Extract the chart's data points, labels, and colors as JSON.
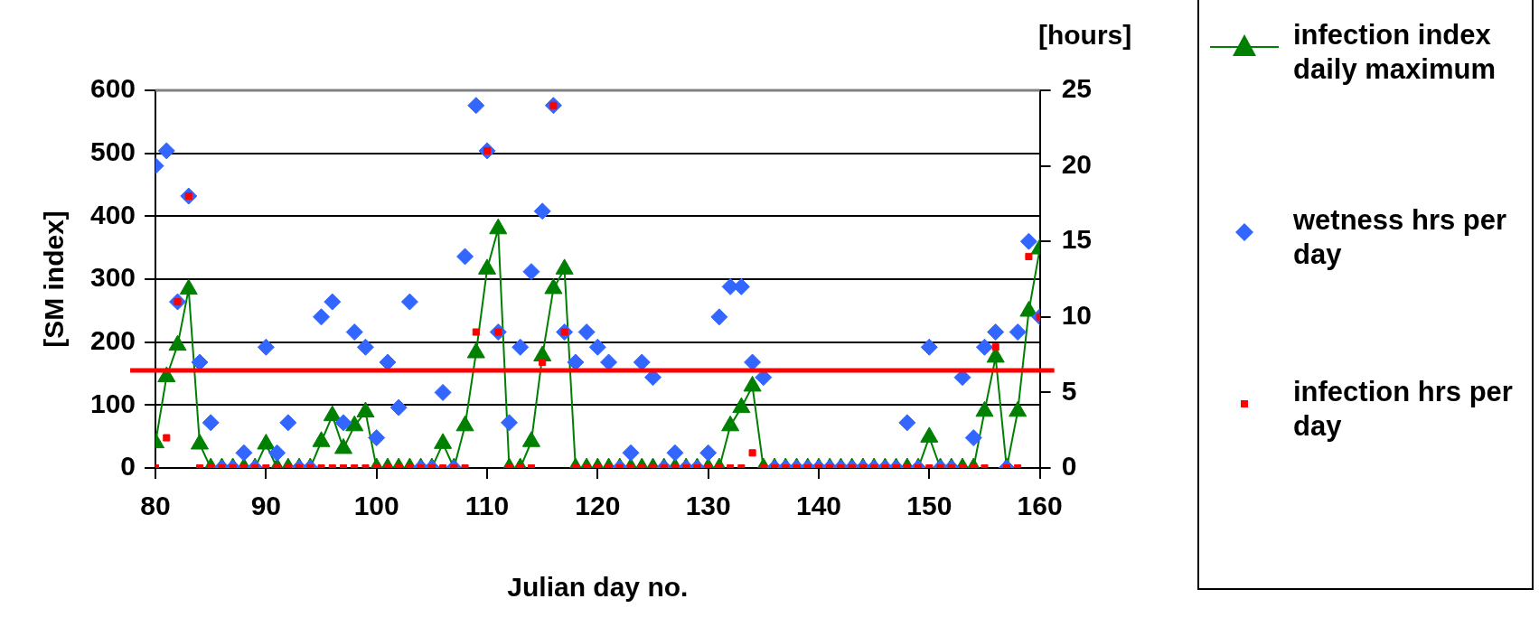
{
  "chart_data": {
    "type": "line",
    "xlabel": "Julian day no.",
    "ylabel": "[SM index]",
    "y2label": "[hours]",
    "x": [
      80,
      81,
      82,
      83,
      84,
      85,
      86,
      87,
      88,
      89,
      90,
      91,
      92,
      93,
      94,
      95,
      96,
      97,
      98,
      99,
      100,
      101,
      102,
      103,
      104,
      105,
      106,
      107,
      108,
      109,
      110,
      111,
      112,
      113,
      114,
      115,
      116,
      117,
      118,
      119,
      120,
      121,
      122,
      123,
      124,
      125,
      126,
      127,
      128,
      129,
      130,
      131,
      132,
      133,
      134,
      135,
      136,
      137,
      138,
      139,
      140,
      141,
      142,
      143,
      144,
      145,
      146,
      147,
      148,
      149,
      150,
      151,
      152,
      153,
      154,
      155,
      156,
      157,
      158,
      159,
      160
    ],
    "series": [
      {
        "name": "infection index daily maximum",
        "type": "line",
        "marker": "triangle",
        "color": "#008000",
        "values": [
          40,
          145,
          195,
          284,
          38,
          0,
          0,
          0,
          0,
          0,
          38,
          0,
          0,
          0,
          0,
          42,
          83,
          31,
          67,
          89,
          0,
          0,
          0,
          0,
          0,
          0,
          39,
          0,
          67,
          183,
          316,
          380,
          0,
          0,
          42,
          178,
          285,
          316,
          0,
          0,
          0,
          0,
          0,
          0,
          0,
          0,
          0,
          0,
          0,
          0,
          0,
          0,
          67,
          96,
          130,
          0,
          0,
          0,
          0,
          0,
          0,
          0,
          0,
          0,
          0,
          0,
          0,
          0,
          0,
          0,
          49,
          0,
          0,
          0,
          0,
          90,
          176,
          0,
          90,
          249,
          348
        ]
      },
      {
        "name": "wetness hrs per day",
        "type": "scatter",
        "axis": "y2",
        "marker": "diamond",
        "color": "#3366ff",
        "values": [
          20,
          21,
          11,
          18,
          7,
          3,
          0,
          0,
          1,
          0,
          8,
          1,
          3,
          0,
          0,
          10,
          11,
          3,
          9,
          8,
          2,
          7,
          4,
          11,
          0,
          0,
          5,
          0,
          14,
          24,
          21,
          9,
          3,
          8,
          13,
          17,
          24,
          9,
          7,
          9,
          8,
          7,
          0,
          1,
          7,
          6,
          0,
          1,
          0,
          0,
          1,
          10,
          12,
          12,
          7,
          6,
          0,
          0,
          0,
          0,
          0,
          0,
          0,
          0,
          0,
          0,
          0,
          0,
          3,
          0,
          8,
          0,
          0,
          6,
          2,
          8,
          9,
          0,
          9,
          15,
          10
        ]
      },
      {
        "name": "infection hrs per day",
        "type": "scatter",
        "axis": "y2",
        "marker": "square",
        "color": "#ff0000",
        "values": [
          0,
          2,
          11,
          18,
          0,
          0,
          0,
          0,
          0,
          0,
          0,
          0,
          0,
          0,
          0,
          0,
          0,
          0,
          0,
          0,
          0,
          0,
          0,
          0,
          0,
          0,
          0,
          0,
          0,
          9,
          21,
          9,
          0,
          0,
          0,
          7,
          24,
          9,
          0,
          0,
          0,
          0,
          0,
          0,
          0,
          0,
          0,
          0,
          0,
          0,
          0,
          0,
          0,
          0,
          1,
          0,
          0,
          0,
          0,
          0,
          0,
          0,
          0,
          0,
          0,
          0,
          0,
          0,
          0,
          0,
          0,
          0,
          0,
          0,
          0,
          0,
          8,
          0,
          0,
          14,
          10
        ]
      }
    ],
    "xlim": [
      80,
      160
    ],
    "xticks": [
      80,
      90,
      100,
      110,
      120,
      130,
      140,
      150,
      160
    ],
    "ylim": [
      0,
      600
    ],
    "yticks": [
      0,
      100,
      200,
      300,
      400,
      500,
      600
    ],
    "y2lim": [
      0,
      25
    ],
    "y2ticks": [
      0,
      5,
      10,
      15,
      20,
      25
    ],
    "grid": "y",
    "legend": "right",
    "ref_lines": [
      {
        "axis": "y",
        "value": 155,
        "color": "#ff0000"
      }
    ]
  }
}
